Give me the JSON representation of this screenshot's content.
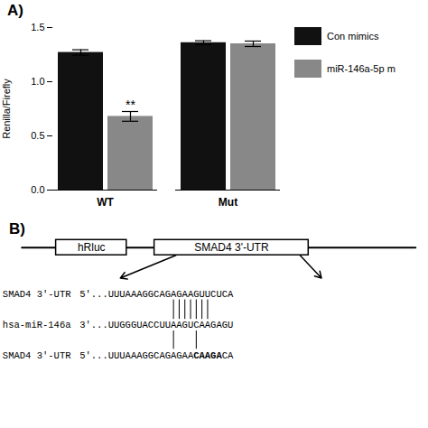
{
  "chart_data": [
    {
      "type": "bar",
      "title": "A)",
      "categories": [
        "WT",
        "Mut"
      ],
      "series": [
        {
          "name": "Con mimics",
          "color": "#111111",
          "values": [
            1.27,
            1.36
          ],
          "errors": [
            0.025,
            0.018
          ]
        },
        {
          "name": "miR-146a-5p m",
          "color": "#888888",
          "values": [
            0.68,
            1.35
          ],
          "errors": [
            0.045,
            0.025
          ]
        }
      ],
      "ylabel": "Renilla/Firefly",
      "ylim": [
        0.0,
        1.5
      ],
      "yticks": [
        {
          "value": 0.0,
          "label": "0.0"
        },
        0.5,
        {
          "value": 1.0,
          "label": "1.0"
        },
        1.5
      ],
      "grid": false,
      "legend": "right",
      "annotations": [
        {
          "text": "**",
          "category": "WT",
          "series": "miR-146a-5p m"
        }
      ]
    },
    {
      "type": "diagram",
      "title": "B)",
      "boxes": [
        "hRluc",
        "SMAD4 3'-UTR"
      ],
      "rows": [
        {
          "label": "SMAD4 3'-UTR",
          "segments": [
            {
              "text": "5'...UUUAAAGGCAGAGAAGUUCUCA"
            }
          ]
        },
        {
          "label": "hsa-miR-146a",
          "segments": [
            {
              "text": "3'...UUGGGUACCUUAAGUCAAGAGU"
            }
          ]
        },
        {
          "label": "SMAD4 3'-UTR",
          "segments": [
            {
              "text": "5'...UUUAAAGGCAGAGAA"
            },
            {
              "text": "CAAGA",
              "bold": true
            },
            {
              "text": "CA"
            }
          ]
        }
      ]
    }
  ]
}
